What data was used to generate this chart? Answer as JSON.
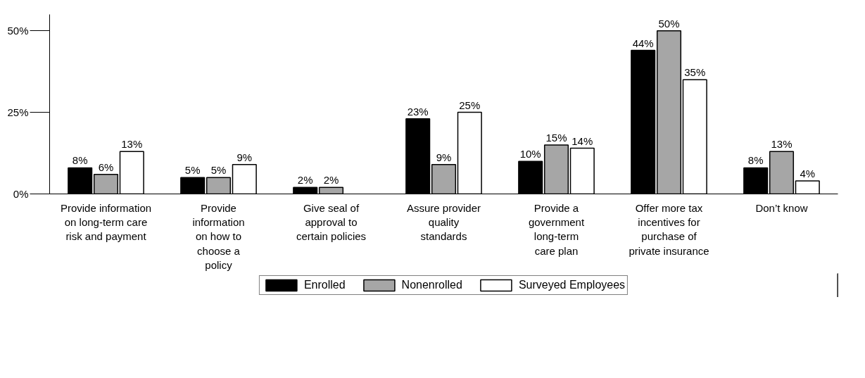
{
  "chart_data": {
    "type": "bar",
    "categories": [
      "Provide information\non long-term care\nrisk and payment",
      "Provide\ninformation\non how to\nchoose a\npolicy",
      "Give seal of\napproval to\ncertain policies",
      "Assure provider\nquality\nstandards",
      "Provide a\ngovernment\nlong-term\ncare plan",
      "Offer more tax\nincentives for\npurchase of\nprivate insurance",
      "Don’t know"
    ],
    "series": [
      {
        "name": "Enrolled",
        "color": "#000000",
        "values": [
          8,
          5,
          2,
          23,
          10,
          44,
          8
        ],
        "value_labels": [
          "8%",
          "5%",
          "2%",
          "23%",
          "10%",
          "44%",
          "8%"
        ]
      },
      {
        "name": "Nonenrolled",
        "color": "#a6a6a6",
        "values": [
          6,
          5,
          2,
          9,
          15,
          50,
          13
        ],
        "value_labels": [
          "6%",
          "5%",
          "2%",
          "9%",
          "15%",
          "50%",
          "13%"
        ]
      },
      {
        "name": "Surveyed Employees",
        "color": "#ffffff",
        "values": [
          13,
          9,
          null,
          25,
          14,
          35,
          4
        ],
        "value_labels": [
          "13%",
          "9%",
          null,
          "25%",
          "14%",
          "35%",
          "4%"
        ]
      }
    ],
    "ylim": [
      0,
      55
    ],
    "yticks": [
      {
        "value": 0,
        "label": "0%"
      },
      {
        "value": 25,
        "label": "25%"
      },
      {
        "value": 50,
        "label": "50%"
      }
    ],
    "legend": "bottom"
  }
}
